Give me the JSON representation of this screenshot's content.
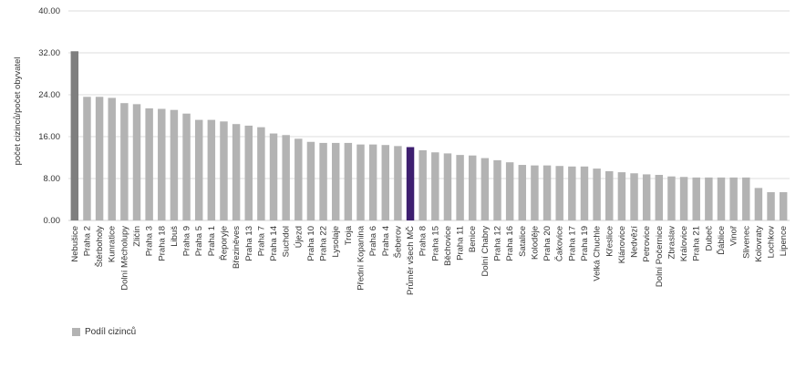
{
  "chart_data": {
    "type": "bar",
    "ylabel": "počet cizinců/počet obyvatel",
    "ylim": [
      0,
      40
    ],
    "yticks": [
      0,
      8,
      16,
      24,
      32,
      40
    ],
    "ytick_labels": [
      "0.00",
      "8.00",
      "16.00",
      "24.00",
      "32.00",
      "40.00"
    ],
    "grid": true,
    "legend_position": "bottom-left",
    "colors": {
      "bar": "#b3b3b3",
      "first": "#7f7f7f",
      "highlight": "#3e1f70",
      "grid": "#d0d0d0"
    },
    "highlight_category": "Průměr všech MČ",
    "categories": [
      "Nebušice",
      "Praha 2",
      "Štěrboholy",
      "Kunratice",
      "Dolní Měcholupy",
      "Zličín",
      "Praha 3",
      "Praha 18",
      "Libuš",
      "Praha 9",
      "Praha 5",
      "Praha 1",
      "Řeporyje",
      "Březiněves",
      "Praha 13",
      "Praha 7",
      "Praha 14",
      "Suchdol",
      "Újezd",
      "Praha 10",
      "Praha 22",
      "Lysolaje",
      "Troja",
      "Přední Kopanina",
      "Praha 6",
      "Praha 4",
      "Šeberov",
      "Průměr všech MČ",
      "Praha 8",
      "Praha 15",
      "Běchovice",
      "Praha 11",
      "Benice",
      "Dolní Chabry",
      "Praha 12",
      "Praha 16",
      "Satalice",
      "Koloděje",
      "Praha 20",
      "Čakovice",
      "Praha 17",
      "Praha 19",
      "Velká Chuchle",
      "Křeslice",
      "Klánovice",
      "Nedvězí",
      "Petrovice",
      "Dolní Počernice",
      "Zbraslav",
      "Královice",
      "Praha 21",
      "Dubeč",
      "Ďáblice",
      "Vinoř",
      "Slivenec",
      "Kolovraty",
      "Lochkov",
      "Lipence"
    ],
    "series": [
      {
        "name": "Podíl cizinců",
        "values": [
          32.3,
          23.6,
          23.6,
          23.4,
          22.4,
          22.2,
          21.4,
          21.3,
          21.1,
          20.4,
          19.2,
          19.2,
          18.9,
          18.4,
          18.1,
          17.8,
          16.6,
          16.3,
          15.6,
          15.0,
          14.8,
          14.8,
          14.8,
          14.5,
          14.5,
          14.4,
          14.2,
          14.0,
          13.4,
          13.0,
          12.8,
          12.5,
          12.4,
          11.9,
          11.5,
          11.1,
          10.6,
          10.5,
          10.5,
          10.4,
          10.3,
          10.3,
          9.9,
          9.4,
          9.2,
          9.0,
          8.8,
          8.7,
          8.4,
          8.3,
          8.2,
          8.2,
          8.2,
          8.2,
          8.2,
          6.2,
          5.4,
          5.4
        ]
      }
    ]
  }
}
